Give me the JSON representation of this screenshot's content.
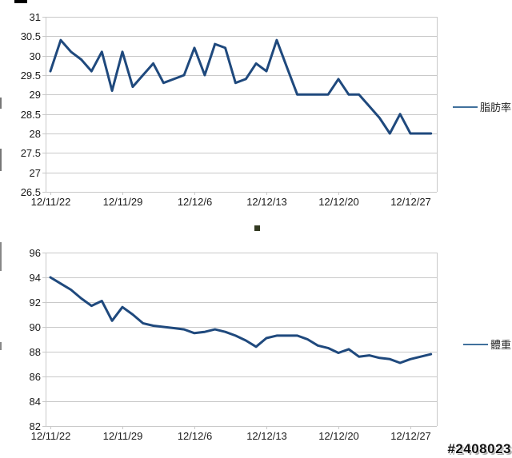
{
  "page": {
    "background": "#ffffff",
    "watermark": "#2408023"
  },
  "chart_data": [
    {
      "type": "line",
      "name": "body-fat-percentage",
      "legend": "脂肪率",
      "line_color": "#1F497D",
      "legend_line_color": "#41719C",
      "grid_color": "#C9C9C9",
      "label_color": "#1a1a1a",
      "grid": "horizontal-only",
      "legend_position": "right",
      "ylim": [
        26.5,
        31
      ],
      "ytick_labels": [
        "31",
        "30.5",
        "30",
        "29.5",
        "29",
        "28.5",
        "28",
        "27.5",
        "27",
        "26.5"
      ],
      "xtick_labels": [
        "12/11/22",
        "12/11/29",
        "12/12/6",
        "12/12/13",
        "12/12/20",
        "12/12/27"
      ],
      "xtick_indices": [
        0,
        7,
        14,
        21,
        28,
        35
      ],
      "x": [
        "12/11/22",
        "12/11/23",
        "12/11/24",
        "12/11/25",
        "12/11/26",
        "12/11/27",
        "12/11/28",
        "12/11/29",
        "12/11/30",
        "12/12/1",
        "12/12/2",
        "12/12/3",
        "12/12/4",
        "12/12/5",
        "12/12/6",
        "12/12/7",
        "12/12/8",
        "12/12/9",
        "12/12/10",
        "12/12/11",
        "12/12/12",
        "12/12/13",
        "12/12/14",
        "12/12/15",
        "12/12/16",
        "12/12/17",
        "12/12/18",
        "12/12/19",
        "12/12/20",
        "12/12/21",
        "12/12/22",
        "12/12/23",
        "12/12/24",
        "12/12/25",
        "12/12/26",
        "12/12/27",
        "12/12/28",
        "12/12/29"
      ],
      "values": [
        29.6,
        30.4,
        30.1,
        29.9,
        29.6,
        30.1,
        29.1,
        30.1,
        29.2,
        29.5,
        29.8,
        29.3,
        29.4,
        29.5,
        30.2,
        29.5,
        30.3,
        30.2,
        29.3,
        29.4,
        29.8,
        29.6,
        30.4,
        29.7,
        29.0,
        29.0,
        29.0,
        29.0,
        29.4,
        29.0,
        29.0,
        28.7,
        28.4,
        28.0,
        28.5,
        28.0,
        28.0,
        28.0
      ]
    },
    {
      "type": "line",
      "name": "body-weight",
      "legend": "體重",
      "line_color": "#1F497D",
      "legend_line_color": "#41719C",
      "grid_color": "#C9C9C9",
      "label_color": "#1a1a1a",
      "grid": "horizontal-only",
      "legend_position": "right",
      "ylim": [
        82,
        96
      ],
      "ytick_labels": [
        "96",
        "94",
        "92",
        "90",
        "88",
        "86",
        "84",
        "82"
      ],
      "xtick_labels": [
        "12/11/22",
        "12/11/29",
        "12/12/6",
        "12/12/13",
        "12/12/20",
        "12/12/27"
      ],
      "xtick_indices": [
        0,
        7,
        14,
        21,
        28,
        35
      ],
      "x": [
        "12/11/22",
        "12/11/23",
        "12/11/24",
        "12/11/25",
        "12/11/26",
        "12/11/27",
        "12/11/28",
        "12/11/29",
        "12/11/30",
        "12/12/1",
        "12/12/2",
        "12/12/3",
        "12/12/4",
        "12/12/5",
        "12/12/6",
        "12/12/7",
        "12/12/8",
        "12/12/9",
        "12/12/10",
        "12/12/11",
        "12/12/12",
        "12/12/13",
        "12/12/14",
        "12/12/15",
        "12/12/16",
        "12/12/17",
        "12/12/18",
        "12/12/19",
        "12/12/20",
        "12/12/21",
        "12/12/22",
        "12/12/23",
        "12/12/24",
        "12/12/25",
        "12/12/26",
        "12/12/27",
        "12/12/28",
        "12/12/29"
      ],
      "values": [
        94.0,
        93.5,
        93.0,
        92.3,
        91.7,
        92.1,
        90.5,
        91.6,
        91.0,
        90.3,
        90.1,
        90.0,
        89.9,
        89.8,
        89.5,
        89.6,
        89.8,
        89.6,
        89.3,
        88.9,
        88.4,
        89.1,
        89.3,
        89.3,
        89.3,
        89.0,
        88.5,
        88.3,
        87.9,
        88.2,
        87.6,
        87.7,
        87.5,
        87.4,
        87.1,
        87.4,
        87.6,
        87.8
      ]
    }
  ]
}
